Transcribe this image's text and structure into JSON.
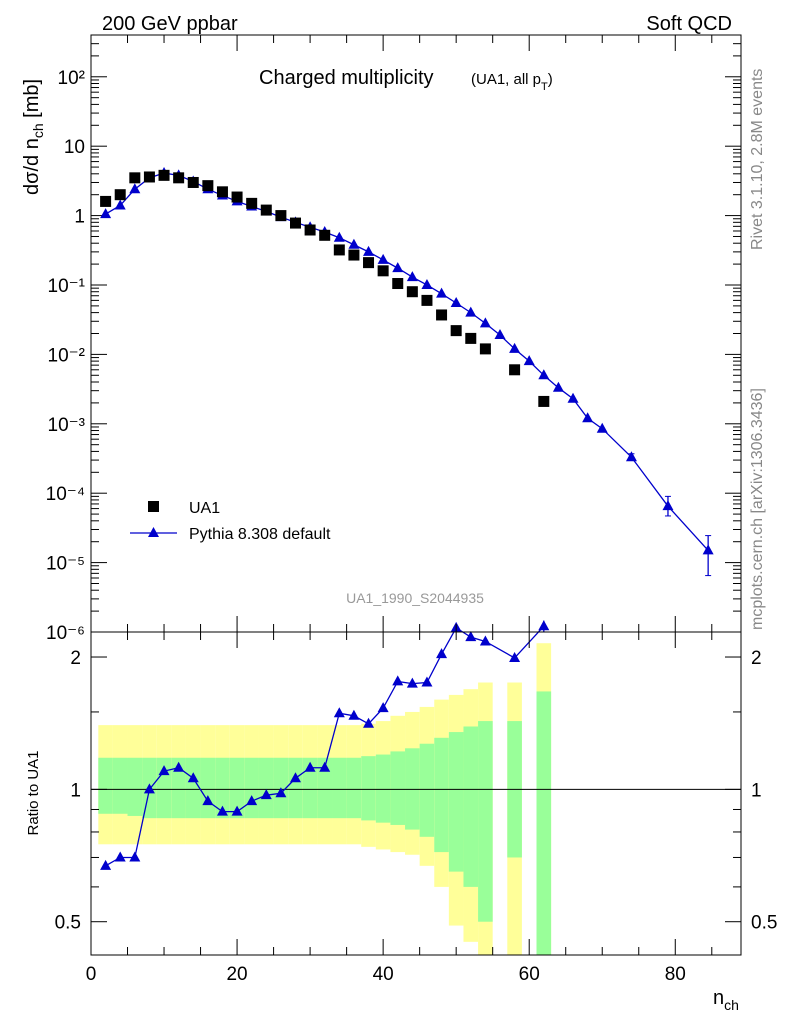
{
  "header": {
    "left": "200 GeV ppbar",
    "right": "Soft QCD"
  },
  "side": {
    "rivet": "Rivet 3.1.10,  2.8M events",
    "mcplots": "mcplots.cern.ch [arXiv:1306.3436]"
  },
  "main": {
    "title": "Charged multiplicity",
    "title_sub": "(UA1, all p",
    "title_sub_index": "T",
    "title_sub_close": ")",
    "ylabel": "dσ/d n",
    "ylabel_sub": "ch",
    "ylabel_unit": " [mb]",
    "analysis_id": "UA1_1990_S2044935"
  },
  "ratio": {
    "ylabel": "Ratio to UA1"
  },
  "xaxis": {
    "label": "n",
    "label_sub": "ch",
    "ticks": [
      "0",
      "20",
      "40",
      "60",
      "80"
    ]
  },
  "legend": [
    {
      "label": "UA1",
      "marker": "square",
      "color": "#000000"
    },
    {
      "label": "Pythia 8.308 default",
      "marker": "triangle",
      "color": "#0000cc"
    }
  ],
  "colors": {
    "data": "#000000",
    "mc": "#0000cc",
    "band_inner": "#99ff99",
    "band_outer": "#ffff99"
  },
  "chart_data": [
    {
      "type": "scatter",
      "panel": "main",
      "yscale": "log",
      "xlim": [
        0,
        89
      ],
      "ylim": [
        1e-06,
        400
      ],
      "ytick_labels": [
        "10⁻⁶",
        "10⁻⁵",
        "10⁻⁴",
        "10⁻³",
        "10⁻²",
        "10⁻¹",
        "1",
        "10",
        "10²"
      ],
      "series": [
        {
          "name": "UA1",
          "x": [
            2,
            4,
            6,
            8,
            10,
            12,
            14,
            16,
            18,
            20,
            22,
            24,
            26,
            28,
            30,
            32,
            34,
            36,
            38,
            40,
            42,
            44,
            46,
            48,
            50,
            52,
            54,
            58,
            62
          ],
          "y": [
            1.6,
            2.0,
            3.5,
            3.6,
            3.8,
            3.5,
            3.0,
            2.7,
            2.2,
            1.85,
            1.5,
            1.2,
            1.0,
            0.78,
            0.62,
            0.52,
            0.32,
            0.27,
            0.21,
            0.16,
            0.105,
            0.08,
            0.06,
            0.037,
            0.022,
            0.017,
            0.012,
            0.006,
            0.0021
          ]
        },
        {
          "name": "Pythia 8.308 default",
          "x": [
            2,
            4,
            6,
            8,
            10,
            12,
            14,
            16,
            18,
            20,
            22,
            24,
            26,
            28,
            30,
            32,
            34,
            36,
            38,
            40,
            42,
            44,
            46,
            48,
            50,
            52,
            54,
            56,
            58,
            60,
            62,
            64,
            66,
            68,
            70,
            74,
            79,
            84.5
          ],
          "y": [
            1.05,
            1.4,
            2.4,
            3.5,
            4.1,
            3.8,
            3.1,
            2.4,
            1.95,
            1.6,
            1.35,
            1.15,
            0.95,
            0.8,
            0.68,
            0.58,
            0.48,
            0.38,
            0.3,
            0.23,
            0.175,
            0.13,
            0.1,
            0.075,
            0.055,
            0.04,
            0.028,
            0.019,
            0.012,
            0.008,
            0.005,
            0.0033,
            0.0023,
            0.0012,
            0.00085,
            0.00033,
            6.5e-05,
            1.5e-05
          ],
          "yerr_low": [
            0,
            0,
            0,
            0,
            0,
            0,
            0,
            0,
            0,
            0,
            0,
            0,
            0,
            0,
            0,
            0,
            0,
            0,
            0,
            0,
            0,
            0,
            0,
            0,
            0,
            0,
            0,
            0,
            0,
            0,
            0,
            0,
            0,
            0,
            0,
            3e-05,
            1.8e-05,
            8.5e-06
          ],
          "yerr_high": [
            0,
            0,
            0,
            0,
            0,
            0,
            0,
            0,
            0,
            0,
            0,
            0,
            0,
            0,
            0,
            0,
            0,
            0,
            0,
            0,
            0,
            0,
            0,
            0,
            0,
            0,
            0,
            0,
            0,
            0,
            0,
            0,
            0,
            0,
            0,
            4e-05,
            2.5e-05,
            9.5e-06
          ]
        }
      ]
    },
    {
      "type": "line",
      "panel": "ratio",
      "yscale": "log",
      "xlim": [
        0,
        89
      ],
      "ylim": [
        0.42,
        2.28
      ],
      "ytick_labels": [
        "0.5",
        "1",
        "2"
      ],
      "reference_line": 1,
      "bands": {
        "x": [
          1,
          3,
          5,
          7,
          9,
          11,
          13,
          15,
          17,
          19,
          21,
          23,
          25,
          27,
          29,
          31,
          33,
          35,
          37,
          39,
          41,
          43,
          45,
          47,
          49,
          51,
          53,
          57,
          61
        ],
        "width": 2,
        "inner_low": [
          0.88,
          0.88,
          0.87,
          0.86,
          0.86,
          0.86,
          0.86,
          0.86,
          0.86,
          0.86,
          0.86,
          0.86,
          0.86,
          0.86,
          0.86,
          0.86,
          0.86,
          0.86,
          0.85,
          0.84,
          0.83,
          0.81,
          0.78,
          0.72,
          0.65,
          0.6,
          0.5,
          0.7,
          0.4
        ],
        "inner_high": [
          1.18,
          1.18,
          1.18,
          1.18,
          1.18,
          1.18,
          1.18,
          1.18,
          1.18,
          1.18,
          1.18,
          1.18,
          1.18,
          1.18,
          1.18,
          1.18,
          1.18,
          1.18,
          1.19,
          1.2,
          1.22,
          1.24,
          1.27,
          1.31,
          1.35,
          1.39,
          1.43,
          1.43,
          1.67
        ],
        "outer_low": [
          0.75,
          0.75,
          0.75,
          0.75,
          0.75,
          0.75,
          0.75,
          0.75,
          0.75,
          0.75,
          0.75,
          0.75,
          0.75,
          0.75,
          0.75,
          0.75,
          0.75,
          0.75,
          0.74,
          0.73,
          0.72,
          0.71,
          0.67,
          0.6,
          0.49,
          0.45,
          0.4,
          0.4,
          0.4
        ],
        "outer_high": [
          1.4,
          1.4,
          1.4,
          1.4,
          1.4,
          1.4,
          1.4,
          1.4,
          1.4,
          1.4,
          1.4,
          1.4,
          1.4,
          1.4,
          1.4,
          1.4,
          1.4,
          1.4,
          1.41,
          1.43,
          1.47,
          1.5,
          1.54,
          1.6,
          1.64,
          1.69,
          1.75,
          1.75,
          2.15
        ]
      },
      "series": [
        {
          "name": "Pythia 8.308 default",
          "x": [
            2,
            4,
            6,
            8,
            10,
            12,
            14,
            16,
            18,
            20,
            22,
            24,
            26,
            28,
            30,
            32,
            34,
            36,
            38,
            40,
            42,
            44,
            46,
            48,
            50,
            52,
            54,
            58,
            62
          ],
          "y": [
            0.67,
            0.7,
            0.7,
            1.0,
            1.1,
            1.12,
            1.06,
            0.94,
            0.89,
            0.89,
            0.94,
            0.97,
            0.98,
            1.06,
            1.12,
            1.12,
            1.49,
            1.47,
            1.41,
            1.53,
            1.76,
            1.74,
            1.75,
            2.03,
            2.33,
            2.22,
            2.17,
            1.99,
            2.35
          ],
          "yerr_low": [
            0,
            0,
            0,
            0,
            0,
            0,
            0,
            0,
            0,
            0,
            0,
            0,
            0,
            0,
            0,
            0,
            0,
            0,
            0,
            0,
            0,
            0,
            0,
            0,
            0,
            0,
            0,
            0,
            0.07
          ],
          "yerr_high": [
            0,
            0,
            0,
            0,
            0,
            0,
            0,
            0,
            0,
            0,
            0,
            0,
            0,
            0,
            0,
            0,
            0,
            0,
            0,
            0,
            0,
            0,
            0,
            0,
            0,
            0,
            0,
            0,
            0.07
          ]
        }
      ]
    }
  ]
}
